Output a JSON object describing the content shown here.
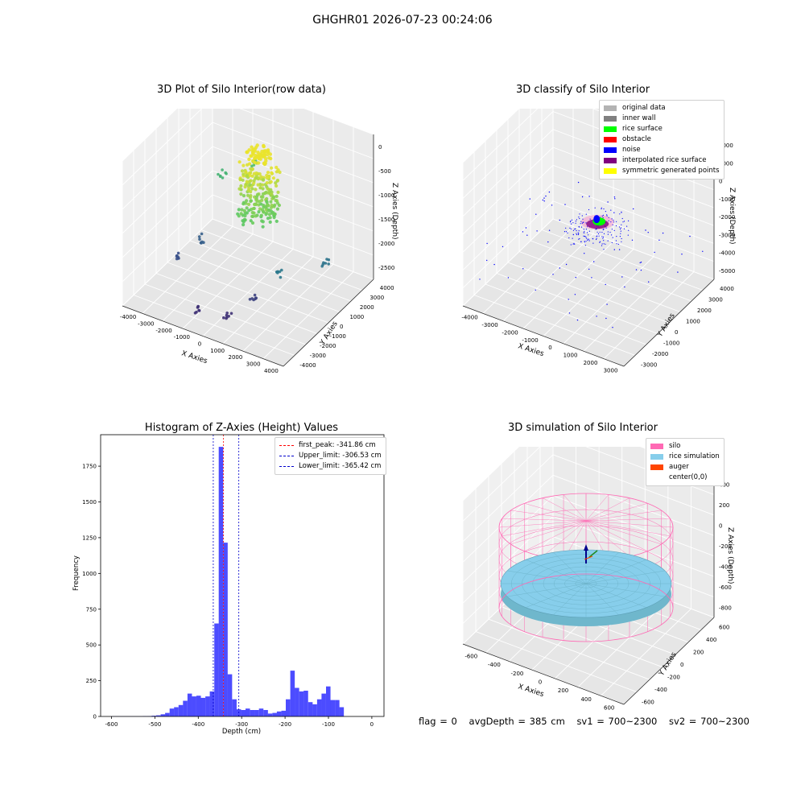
{
  "suptitle": "GHGHR01 2026-07-23 00:24:06",
  "footer": {
    "flag": "flag = 0",
    "avg_depth": "avgDepth = 385 cm",
    "sv1": "sv1 = 700~2300",
    "sv2": "sv2 = 700~2300"
  },
  "chart_data": [
    {
      "type": "scatter",
      "title": "3D Plot of Silo Interior(row data)",
      "xlabel": "X Axies",
      "ylabel": "Y Axies",
      "zlabel": "Z Axies (Depth)",
      "xticks": [
        "-4000",
        "-3000",
        "-2000",
        "-1000",
        "0",
        "1000",
        "2000",
        "3000",
        "4000"
      ],
      "yticks": [
        "-4000",
        "-3000",
        "-2000",
        "-1000",
        "0",
        "1000",
        "2000",
        "3000",
        "4000"
      ],
      "zticks": [
        "0",
        "-500",
        "-1000",
        "-1500",
        "-2000",
        "-2500"
      ],
      "colormap": "viridis (by depth)",
      "grid": true
    },
    {
      "type": "scatter",
      "title": "3D classify of Silo Interior",
      "xlabel": "X Axies",
      "ylabel": "Y Axies",
      "zlabel": "Z Axies (Depth)",
      "xticks": [
        "-4000",
        "-3000",
        "-2000",
        "-1000",
        "0",
        "1000",
        "2000",
        "3000"
      ],
      "yticks": [
        "-3000",
        "-2000",
        "-1000",
        "0",
        "1000",
        "2000",
        "3000",
        "4000"
      ],
      "zticks": [
        "2000",
        "1000",
        "0",
        "-1000",
        "-2000",
        "-3000",
        "-4000",
        "-5000"
      ],
      "legend_position": "top-right",
      "legend": [
        {
          "label": "original data",
          "color": "#b3b3b3"
        },
        {
          "label": "inner wall",
          "color": "#808080"
        },
        {
          "label": "rice surface",
          "color": "#00ff00"
        },
        {
          "label": "obstacle",
          "color": "#ff0000"
        },
        {
          "label": "noise",
          "color": "#0000ff"
        },
        {
          "label": "interpolated rice surface",
          "color": "#800080"
        },
        {
          "label": "symmetric generated points",
          "color": "#ffff00"
        }
      ],
      "grid": true
    },
    {
      "type": "bar",
      "title": "Histogram of Z-Axies (Height) Values",
      "xlabel": "Depth (cm)",
      "ylabel": "Frequency",
      "xlim": [
        -625,
        28
      ],
      "ylim": [
        0,
        1970
      ],
      "xticks": [
        -600,
        -500,
        -400,
        -300,
        -200,
        -100,
        0
      ],
      "yticks": [
        0,
        250,
        500,
        750,
        1000,
        1250,
        1500,
        1750
      ],
      "bar_color": "#0000ff",
      "bins": {
        "start": -600,
        "width": 10.3,
        "counts": [
          1,
          1,
          1,
          1,
          1,
          1,
          1,
          2,
          3,
          5,
          8,
          15,
          25,
          55,
          65,
          80,
          110,
          160,
          140,
          145,
          130,
          140,
          175,
          650,
          1885,
          1215,
          295,
          120,
          50,
          45,
          55,
          45,
          45,
          55,
          45,
          20,
          25,
          35,
          40,
          120,
          320,
          200,
          175,
          180,
          100,
          85,
          120,
          160,
          210,
          115,
          115,
          65
        ]
      },
      "lines": [
        {
          "label": "first_peak: -341.86 cm",
          "x": -341.86,
          "color": "#ff0000"
        },
        {
          "label": "Upper_limit: -306.53 cm",
          "x": -306.53,
          "color": "#0000cc"
        },
        {
          "label": "Lower_limit: -365.42 cm",
          "x": -365.42,
          "color": "#0000cc"
        }
      ],
      "legend_position": "top-right"
    },
    {
      "type": "scatter",
      "title": "3D simulation of Silo Interior",
      "xlabel": "X Axies",
      "ylabel": "Y Axies",
      "zlabel": "Z Axies (Depth)",
      "xticks": [
        "-600",
        "-400",
        "-200",
        "0",
        "200",
        "400",
        "600"
      ],
      "yticks": [
        "-600",
        "-400",
        "-200",
        "0",
        "200",
        "400",
        "600"
      ],
      "zticks": [
        "400",
        "200",
        "0",
        "-200",
        "-400",
        "-600",
        "-800"
      ],
      "legend_position": "top-right",
      "legend": [
        {
          "label": "silo",
          "color": "#ff69b4"
        },
        {
          "label": "rice simulation",
          "color": "#87ceeb"
        },
        {
          "label": "auger",
          "color": "#ff4500"
        },
        {
          "label": "center(0,0)",
          "color": "#ffffff"
        }
      ],
      "grid": true
    }
  ]
}
